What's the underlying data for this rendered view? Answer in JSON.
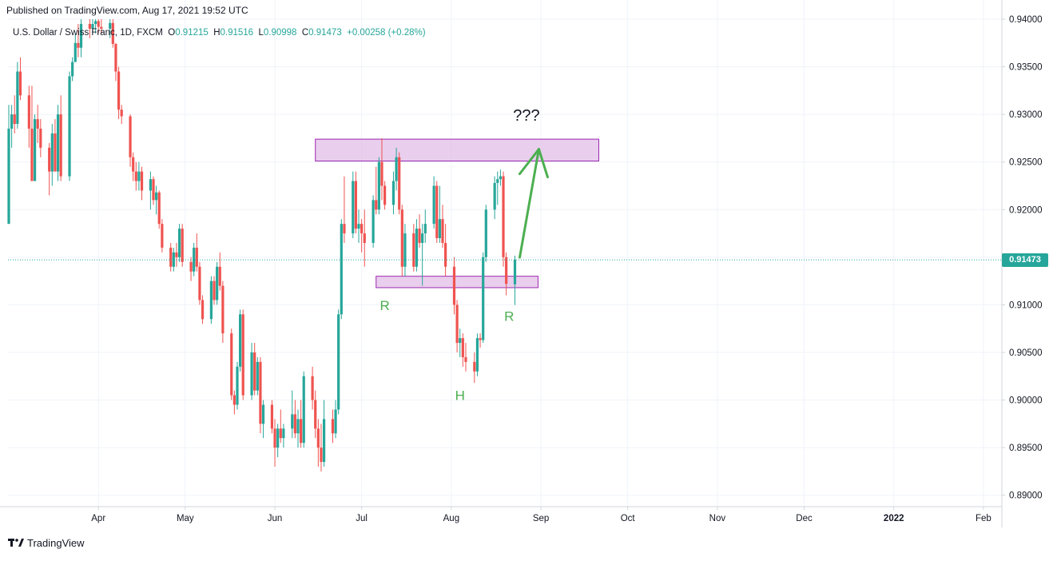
{
  "published": "Published on TradingView.com, Aug 17, 2021 19:52 UTC",
  "legend": {
    "symbol": "U.S. Dollar / Swiss Franc, 1D, FXCM",
    "o_label": "O",
    "o": "0.91215",
    "h_label": "H",
    "h": "0.91516",
    "l_label": "L",
    "l": "0.90998",
    "c_label": "C",
    "c": "0.91473",
    "change": "+0.00258 (+0.28%)"
  },
  "last_price_label": "0.91473",
  "footer_brand": "TradingView",
  "colors": {
    "up": "#26a69a",
    "down": "#ef5350",
    "zone_fill": "#e1bee7",
    "zone_stroke": "#9c27b0",
    "annotation": "#4caf50",
    "grid": "#f0f3fa"
  },
  "annotations": {
    "question": "???",
    "r_left": "R",
    "head": "H",
    "r_right": "R"
  },
  "chart_data": {
    "type": "candlestick",
    "title": "",
    "y_axis_ticks": [
      "0.94000",
      "0.93500",
      "0.93000",
      "0.92500",
      "0.92000",
      "0.91500",
      "0.91000",
      "0.90500",
      "0.90000",
      "0.89500",
      "0.89000"
    ],
    "x_axis_ticks": [
      "Apr",
      "May",
      "Jun",
      "Jul",
      "Aug",
      "Sep",
      "Oct",
      "Nov",
      "Dec",
      "2022",
      "Feb"
    ],
    "ylim": [
      0.8888,
      0.94
    ],
    "last_price": 0.91473,
    "zones": [
      {
        "name": "resistance",
        "x_from": "2021-06-15",
        "x_to": "2021-09-21",
        "y_from": 0.9251,
        "y_to": 0.9274
      },
      {
        "name": "support",
        "x_from": "2021-07-06",
        "x_to": "2021-08-31",
        "y_from": 0.9118,
        "y_to": 0.913
      }
    ],
    "candles": [
      {
        "d": "2021-03-01",
        "o": 0.9185,
        "h": 0.931,
        "l": 0.9185,
        "c": 0.9285
      },
      {
        "d": "2021-03-02",
        "o": 0.9285,
        "h": 0.931,
        "l": 0.9265,
        "c": 0.93
      },
      {
        "d": "2021-03-03",
        "o": 0.93,
        "h": 0.932,
        "l": 0.928,
        "c": 0.929
      },
      {
        "d": "2021-03-04",
        "o": 0.929,
        "h": 0.9355,
        "l": 0.9285,
        "c": 0.9345
      },
      {
        "d": "2021-03-05",
        "o": 0.9345,
        "h": 0.936,
        "l": 0.9315,
        "c": 0.932
      },
      {
        "d": "2021-03-08",
        "o": 0.932,
        "h": 0.933,
        "l": 0.9265,
        "c": 0.9285
      },
      {
        "d": "2021-03-09",
        "o": 0.9285,
        "h": 0.933,
        "l": 0.923,
        "c": 0.923
      },
      {
        "d": "2021-03-10",
        "o": 0.923,
        "h": 0.93,
        "l": 0.923,
        "c": 0.9295
      },
      {
        "d": "2021-03-11",
        "o": 0.9295,
        "h": 0.931,
        "l": 0.927,
        "c": 0.9285
      },
      {
        "d": "2021-03-12",
        "o": 0.9285,
        "h": 0.9295,
        "l": 0.9255,
        "c": 0.9265
      },
      {
        "d": "2021-03-15",
        "o": 0.9265,
        "h": 0.927,
        "l": 0.9215,
        "c": 0.924
      },
      {
        "d": "2021-03-16",
        "o": 0.924,
        "h": 0.929,
        "l": 0.9225,
        "c": 0.928
      },
      {
        "d": "2021-03-17",
        "o": 0.928,
        "h": 0.9295,
        "l": 0.924,
        "c": 0.924
      },
      {
        "d": "2021-03-18",
        "o": 0.924,
        "h": 0.931,
        "l": 0.923,
        "c": 0.93
      },
      {
        "d": "2021-03-19",
        "o": 0.93,
        "h": 0.932,
        "l": 0.923,
        "c": 0.9235
      },
      {
        "d": "2021-03-22",
        "o": 0.9235,
        "h": 0.9345,
        "l": 0.923,
        "c": 0.934
      },
      {
        "d": "2021-03-23",
        "o": 0.934,
        "h": 0.936,
        "l": 0.9335,
        "c": 0.9355
      },
      {
        "d": "2021-03-24",
        "o": 0.9355,
        "h": 0.9385,
        "l": 0.9355,
        "c": 0.9375
      },
      {
        "d": "2021-03-25",
        "o": 0.9375,
        "h": 0.9395,
        "l": 0.936,
        "c": 0.937
      },
      {
        "d": "2021-03-26",
        "o": 0.937,
        "h": 0.94,
        "l": 0.936,
        "c": 0.9395
      },
      {
        "d": "2021-03-29",
        "o": 0.9395,
        "h": 0.94,
        "l": 0.938,
        "c": 0.939
      },
      {
        "d": "2021-03-30",
        "o": 0.939,
        "h": 0.94,
        "l": 0.9385,
        "c": 0.9395
      },
      {
        "d": "2021-03-31",
        "o": 0.9395,
        "h": 0.94,
        "l": 0.9385,
        "c": 0.9398
      },
      {
        "d": "2021-04-01",
        "o": 0.9398,
        "h": 0.94,
        "l": 0.9385,
        "c": 0.9392
      },
      {
        "d": "2021-04-02",
        "o": 0.9392,
        "h": 0.94,
        "l": 0.9385,
        "c": 0.939
      },
      {
        "d": "2021-04-05",
        "o": 0.939,
        "h": 0.94,
        "l": 0.938,
        "c": 0.9396
      },
      {
        "d": "2021-04-06",
        "o": 0.9396,
        "h": 0.94,
        "l": 0.937,
        "c": 0.9374
      },
      {
        "d": "2021-04-07",
        "o": 0.9374,
        "h": 0.9375,
        "l": 0.9335,
        "c": 0.9345
      },
      {
        "d": "2021-04-08",
        "o": 0.9345,
        "h": 0.935,
        "l": 0.9295,
        "c": 0.9305
      },
      {
        "d": "2021-04-09",
        "o": 0.9305,
        "h": 0.931,
        "l": 0.929,
        "c": 0.9298
      },
      {
        "d": "2021-04-12",
        "o": 0.9298,
        "h": 0.93,
        "l": 0.9245,
        "c": 0.9255
      },
      {
        "d": "2021-04-13",
        "o": 0.9255,
        "h": 0.926,
        "l": 0.923,
        "c": 0.924
      },
      {
        "d": "2021-04-14",
        "o": 0.924,
        "h": 0.925,
        "l": 0.922,
        "c": 0.923
      },
      {
        "d": "2021-04-15",
        "o": 0.923,
        "h": 0.925,
        "l": 0.922,
        "c": 0.924
      },
      {
        "d": "2021-04-16",
        "o": 0.924,
        "h": 0.9245,
        "l": 0.921,
        "c": 0.922
      },
      {
        "d": "2021-04-19",
        "o": 0.922,
        "h": 0.924,
        "l": 0.92,
        "c": 0.9232
      },
      {
        "d": "2021-04-20",
        "o": 0.9232,
        "h": 0.9235,
        "l": 0.9205,
        "c": 0.921
      },
      {
        "d": "2021-04-21",
        "o": 0.921,
        "h": 0.9225,
        "l": 0.9195,
        "c": 0.9218
      },
      {
        "d": "2021-04-22",
        "o": 0.9218,
        "h": 0.922,
        "l": 0.918,
        "c": 0.9185
      },
      {
        "d": "2021-04-23",
        "o": 0.9185,
        "h": 0.919,
        "l": 0.9155,
        "c": 0.916
      },
      {
        "d": "2021-04-26",
        "o": 0.916,
        "h": 0.9165,
        "l": 0.9135,
        "c": 0.914
      },
      {
        "d": "2021-04-27",
        "o": 0.914,
        "h": 0.916,
        "l": 0.9135,
        "c": 0.9155
      },
      {
        "d": "2021-04-28",
        "o": 0.9155,
        "h": 0.9165,
        "l": 0.914,
        "c": 0.915
      },
      {
        "d": "2021-04-29",
        "o": 0.915,
        "h": 0.9185,
        "l": 0.9145,
        "c": 0.918
      },
      {
        "d": "2021-04-30",
        "o": 0.918,
        "h": 0.9185,
        "l": 0.914,
        "c": 0.9145
      },
      {
        "d": "2021-05-03",
        "o": 0.9145,
        "h": 0.915,
        "l": 0.9125,
        "c": 0.9135
      },
      {
        "d": "2021-05-04",
        "o": 0.9135,
        "h": 0.9165,
        "l": 0.913,
        "c": 0.916
      },
      {
        "d": "2021-05-05",
        "o": 0.916,
        "h": 0.9175,
        "l": 0.9135,
        "c": 0.914
      },
      {
        "d": "2021-05-06",
        "o": 0.914,
        "h": 0.9145,
        "l": 0.91,
        "c": 0.9105
      },
      {
        "d": "2021-05-07",
        "o": 0.9105,
        "h": 0.911,
        "l": 0.908,
        "c": 0.9085
      },
      {
        "d": "2021-05-10",
        "o": 0.9085,
        "h": 0.913,
        "l": 0.908,
        "c": 0.9125
      },
      {
        "d": "2021-05-11",
        "o": 0.9125,
        "h": 0.913,
        "l": 0.91,
        "c": 0.9105
      },
      {
        "d": "2021-05-12",
        "o": 0.9105,
        "h": 0.9145,
        "l": 0.91,
        "c": 0.914
      },
      {
        "d": "2021-05-13",
        "o": 0.914,
        "h": 0.9155,
        "l": 0.9115,
        "c": 0.912
      },
      {
        "d": "2021-05-14",
        "o": 0.912,
        "h": 0.9125,
        "l": 0.906,
        "c": 0.907
      },
      {
        "d": "2021-05-17",
        "o": 0.907,
        "h": 0.9075,
        "l": 0.9,
        "c": 0.9005
      },
      {
        "d": "2021-05-18",
        "o": 0.9005,
        "h": 0.901,
        "l": 0.8985,
        "c": 0.8995
      },
      {
        "d": "2021-05-19",
        "o": 0.8995,
        "h": 0.904,
        "l": 0.899,
        "c": 0.9035
      },
      {
        "d": "2021-05-20",
        "o": 0.9035,
        "h": 0.9095,
        "l": 0.903,
        "c": 0.909
      },
      {
        "d": "2021-05-21",
        "o": 0.909,
        "h": 0.9095,
        "l": 0.9,
        "c": 0.9005
      },
      {
        "d": "2021-05-24",
        "o": 0.9005,
        "h": 0.906,
        "l": 0.9,
        "c": 0.905
      },
      {
        "d": "2021-05-25",
        "o": 0.905,
        "h": 0.906,
        "l": 0.9005,
        "c": 0.901
      },
      {
        "d": "2021-05-26",
        "o": 0.901,
        "h": 0.9045,
        "l": 0.9005,
        "c": 0.904
      },
      {
        "d": "2021-05-27",
        "o": 0.904,
        "h": 0.9045,
        "l": 0.8965,
        "c": 0.8975
      },
      {
        "d": "2021-05-28",
        "o": 0.8975,
        "h": 0.9,
        "l": 0.896,
        "c": 0.8995
      },
      {
        "d": "2021-05-31",
        "o": 0.8995,
        "h": 0.9,
        "l": 0.8965,
        "c": 0.897
      },
      {
        "d": "2021-06-01",
        "o": 0.897,
        "h": 0.898,
        "l": 0.893,
        "c": 0.895
      },
      {
        "d": "2021-06-02",
        "o": 0.895,
        "h": 0.8975,
        "l": 0.894,
        "c": 0.897
      },
      {
        "d": "2021-06-03",
        "o": 0.897,
        "h": 0.899,
        "l": 0.8955,
        "c": 0.896
      },
      {
        "d": "2021-06-04",
        "o": 0.896,
        "h": 0.8975,
        "l": 0.895,
        "c": 0.897
      },
      {
        "d": "2021-06-07",
        "o": 0.897,
        "h": 0.901,
        "l": 0.896,
        "c": 0.8985
      },
      {
        "d": "2021-06-08",
        "o": 0.8985,
        "h": 0.9,
        "l": 0.896,
        "c": 0.8965
      },
      {
        "d": "2021-06-09",
        "o": 0.8965,
        "h": 0.899,
        "l": 0.895,
        "c": 0.898
      },
      {
        "d": "2021-06-10",
        "o": 0.898,
        "h": 0.9,
        "l": 0.895,
        "c": 0.8955
      },
      {
        "d": "2021-06-11",
        "o": 0.8955,
        "h": 0.903,
        "l": 0.895,
        "c": 0.9025
      },
      {
        "d": "2021-06-14",
        "o": 0.9025,
        "h": 0.9035,
        "l": 0.899,
        "c": 0.9
      },
      {
        "d": "2021-06-15",
        "o": 0.9,
        "h": 0.901,
        "l": 0.896,
        "c": 0.897
      },
      {
        "d": "2021-06-16",
        "o": 0.897,
        "h": 0.898,
        "l": 0.893,
        "c": 0.895
      },
      {
        "d": "2021-06-17",
        "o": 0.895,
        "h": 0.8975,
        "l": 0.8925,
        "c": 0.8935
      },
      {
        "d": "2021-06-18",
        "o": 0.8935,
        "h": 0.9,
        "l": 0.893,
        "c": 0.898
      },
      {
        "d": "2021-06-21",
        "o": 0.898,
        "h": 0.899,
        "l": 0.8955,
        "c": 0.8965
      },
      {
        "d": "2021-06-22",
        "o": 0.8965,
        "h": 0.9,
        "l": 0.896,
        "c": 0.899
      },
      {
        "d": "2021-06-23",
        "o": 0.899,
        "h": 0.9095,
        "l": 0.8985,
        "c": 0.909
      },
      {
        "d": "2021-06-24",
        "o": 0.909,
        "h": 0.919,
        "l": 0.9085,
        "c": 0.9185
      },
      {
        "d": "2021-06-25",
        "o": 0.9185,
        "h": 0.9235,
        "l": 0.9165,
        "c": 0.9175
      },
      {
        "d": "2021-06-28",
        "o": 0.9175,
        "h": 0.924,
        "l": 0.917,
        "c": 0.923
      },
      {
        "d": "2021-06-29",
        "o": 0.923,
        "h": 0.924,
        "l": 0.9175,
        "c": 0.918
      },
      {
        "d": "2021-06-30",
        "o": 0.918,
        "h": 0.92,
        "l": 0.9165,
        "c": 0.9185
      },
      {
        "d": "2021-07-01",
        "o": 0.9185,
        "h": 0.919,
        "l": 0.9155,
        "c": 0.9175
      },
      {
        "d": "2021-07-02",
        "o": 0.9175,
        "h": 0.92,
        "l": 0.914,
        "c": 0.9165
      },
      {
        "d": "2021-07-05",
        "o": 0.9165,
        "h": 0.9215,
        "l": 0.916,
        "c": 0.921
      },
      {
        "d": "2021-07-06",
        "o": 0.921,
        "h": 0.9245,
        "l": 0.9195,
        "c": 0.92
      },
      {
        "d": "2021-07-07",
        "o": 0.92,
        "h": 0.9255,
        "l": 0.9195,
        "c": 0.925
      },
      {
        "d": "2021-07-08",
        "o": 0.925,
        "h": 0.9275,
        "l": 0.921,
        "c": 0.9225
      },
      {
        "d": "2021-07-09",
        "o": 0.9225,
        "h": 0.923,
        "l": 0.92,
        "c": 0.9205
      },
      {
        "d": "2021-07-12",
        "o": 0.9205,
        "h": 0.924,
        "l": 0.9195,
        "c": 0.923
      },
      {
        "d": "2021-07-13",
        "o": 0.923,
        "h": 0.9265,
        "l": 0.922,
        "c": 0.9255
      },
      {
        "d": "2021-07-14",
        "o": 0.9255,
        "h": 0.926,
        "l": 0.9195,
        "c": 0.92
      },
      {
        "d": "2021-07-15",
        "o": 0.92,
        "h": 0.9205,
        "l": 0.913,
        "c": 0.914
      },
      {
        "d": "2021-07-16",
        "o": 0.914,
        "h": 0.9185,
        "l": 0.913,
        "c": 0.9175
      },
      {
        "d": "2021-07-19",
        "o": 0.9175,
        "h": 0.9185,
        "l": 0.9135,
        "c": 0.914
      },
      {
        "d": "2021-07-20",
        "o": 0.914,
        "h": 0.919,
        "l": 0.9135,
        "c": 0.918
      },
      {
        "d": "2021-07-21",
        "o": 0.918,
        "h": 0.9195,
        "l": 0.916,
        "c": 0.9165
      },
      {
        "d": "2021-07-22",
        "o": 0.9165,
        "h": 0.9185,
        "l": 0.912,
        "c": 0.9175
      },
      {
        "d": "2021-07-23",
        "o": 0.9175,
        "h": 0.92,
        "l": 0.9165,
        "c": 0.9185
      },
      {
        "d": "2021-07-26",
        "o": 0.9185,
        "h": 0.9235,
        "l": 0.918,
        "c": 0.9225
      },
      {
        "d": "2021-07-27",
        "o": 0.9225,
        "h": 0.923,
        "l": 0.9165,
        "c": 0.917
      },
      {
        "d": "2021-07-28",
        "o": 0.917,
        "h": 0.9225,
        "l": 0.9165,
        "c": 0.919
      },
      {
        "d": "2021-07-29",
        "o": 0.919,
        "h": 0.9205,
        "l": 0.916,
        "c": 0.9165
      },
      {
        "d": "2021-07-30",
        "o": 0.9165,
        "h": 0.9185,
        "l": 0.913,
        "c": 0.914
      },
      {
        "d": "2021-08-02",
        "o": 0.914,
        "h": 0.915,
        "l": 0.909,
        "c": 0.91
      },
      {
        "d": "2021-08-03",
        "o": 0.91,
        "h": 0.9105,
        "l": 0.905,
        "c": 0.906
      },
      {
        "d": "2021-08-04",
        "o": 0.906,
        "h": 0.9075,
        "l": 0.9045,
        "c": 0.9065
      },
      {
        "d": "2021-08-05",
        "o": 0.9065,
        "h": 0.907,
        "l": 0.9035,
        "c": 0.9045
      },
      {
        "d": "2021-08-06",
        "o": 0.9045,
        "h": 0.906,
        "l": 0.903,
        "c": 0.904
      },
      {
        "d": "2021-08-09",
        "o": 0.904,
        "h": 0.905,
        "l": 0.9018,
        "c": 0.903
      },
      {
        "d": "2021-08-10",
        "o": 0.903,
        "h": 0.907,
        "l": 0.9025,
        "c": 0.9065
      },
      {
        "d": "2021-08-11",
        "o": 0.9065,
        "h": 0.907,
        "l": 0.9055,
        "c": 0.9063
      },
      {
        "d": "2021-08-12",
        "o": 0.9063,
        "h": 0.9155,
        "l": 0.906,
        "c": 0.915
      },
      {
        "d": "2021-08-13",
        "o": 0.915,
        "h": 0.9205,
        "l": 0.9145,
        "c": 0.92
      },
      {
        "d": "2021-08-16",
        "o": 0.92,
        "h": 0.9235,
        "l": 0.919,
        "c": 0.9228
      },
      {
        "d": "2021-08-17",
        "o": 0.9228,
        "h": 0.924,
        "l": 0.9205,
        "c": 0.9232
      },
      {
        "d": "2021-08-18",
        "o": 0.9232,
        "h": 0.9242,
        "l": 0.9225,
        "c": 0.9235
      },
      {
        "d": "2021-08-19",
        "o": 0.9235,
        "h": 0.924,
        "l": 0.914,
        "c": 0.915
      },
      {
        "d": "2021-08-20",
        "o": 0.915,
        "h": 0.9155,
        "l": 0.911,
        "c": 0.9122
      },
      {
        "d": "2021-08-23",
        "o": 0.91215,
        "h": 0.91516,
        "l": 0.90998,
        "c": 0.91473
      }
    ]
  }
}
